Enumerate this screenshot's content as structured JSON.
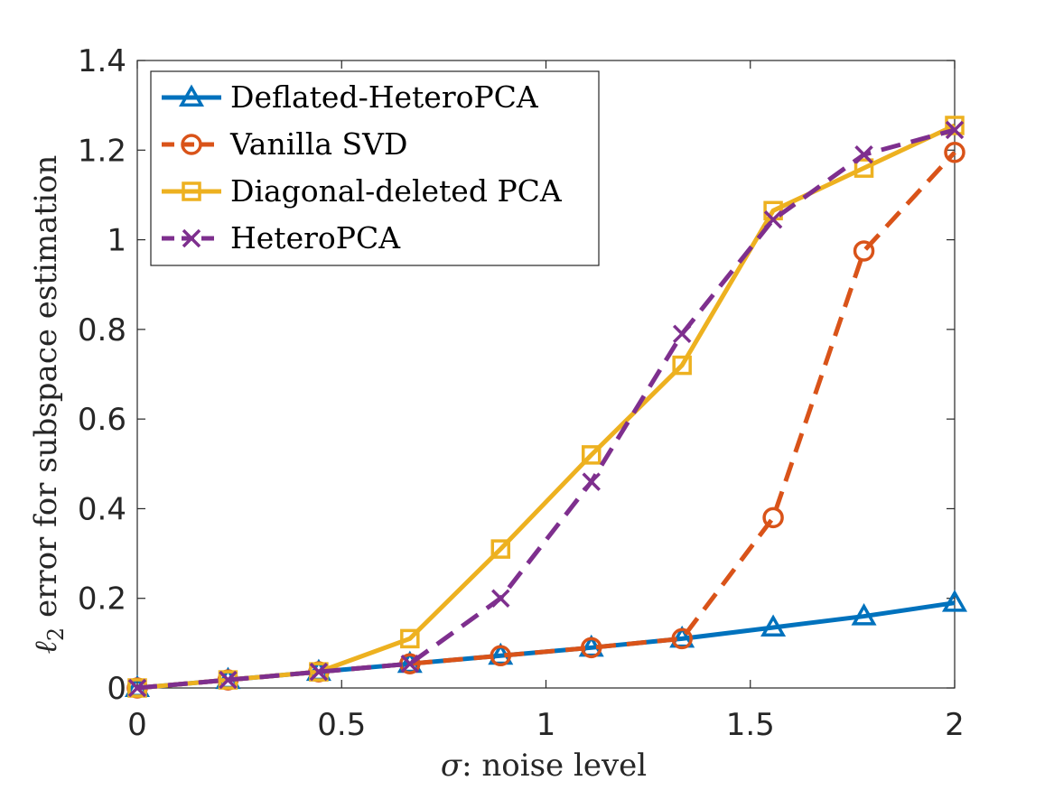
{
  "chart_data": {
    "type": "line",
    "title": "",
    "xlabel_symbol": "σ",
    "xlabel_text": ": noise level",
    "ylabel_symbol": "ℓ",
    "ylabel_subscript": "2",
    "ylabel_text": " error for subspace estimation",
    "xlim": [
      0,
      2
    ],
    "ylim": [
      0,
      1.4
    ],
    "xticks": [
      0,
      0.5,
      1,
      1.5,
      2
    ],
    "xtick_labels": [
      "0",
      "0.5",
      "1",
      "1.5",
      "2"
    ],
    "yticks": [
      0,
      0.2,
      0.4,
      0.6,
      0.8,
      1,
      1.2,
      1.4
    ],
    "ytick_labels": [
      "0",
      "0.2",
      "0.4",
      "0.6",
      "0.8",
      "1",
      "1.2",
      "1.4"
    ],
    "x": [
      0,
      0.222,
      0.444,
      0.667,
      0.889,
      1.111,
      1.333,
      1.556,
      1.778,
      2.0
    ],
    "series": [
      {
        "name": "Deflated-HeteroPCA",
        "color": "#0072BD",
        "dash": "solid",
        "marker": "triangle",
        "values": [
          0.0,
          0.018,
          0.036,
          0.054,
          0.072,
          0.09,
          0.11,
          0.135,
          0.16,
          0.19
        ]
      },
      {
        "name": "Vanilla SVD",
        "color": "#D95319",
        "dash": "dashed",
        "marker": "circle",
        "values": [
          0.0,
          0.018,
          0.036,
          0.054,
          0.072,
          0.09,
          0.11,
          0.38,
          0.975,
          1.195
        ]
      },
      {
        "name": "Diagonal-deleted PCA",
        "color": "#EDB120",
        "dash": "solid",
        "marker": "square",
        "values": [
          0.0,
          0.018,
          0.036,
          0.11,
          0.31,
          0.52,
          0.72,
          1.065,
          1.16,
          1.255
        ]
      },
      {
        "name": "HeteroPCA",
        "color": "#7E2F8E",
        "dash": "dashed",
        "marker": "x",
        "values": [
          0.0,
          0.018,
          0.036,
          0.054,
          0.2,
          0.46,
          0.79,
          1.045,
          1.19,
          1.245
        ]
      }
    ],
    "legend_position": "top-left",
    "grid": false
  }
}
